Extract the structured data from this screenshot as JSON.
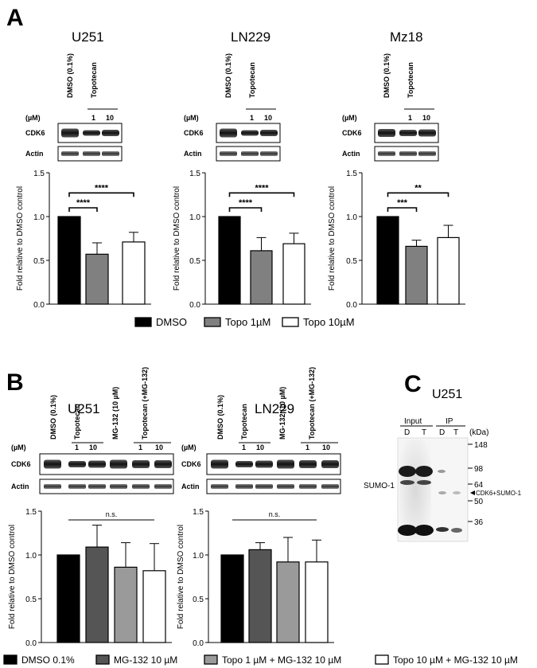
{
  "panels": {
    "a": "A",
    "b": "B",
    "c": "C"
  },
  "blots": {
    "conc_label": "(µM)",
    "dmso": "DMSO (0.1%)",
    "topotecan": "Topotecan",
    "mg132": "MG-132 (10 µM)",
    "topo_mg": "Topotecan (+MG-132)",
    "c1": "1",
    "c10": "10",
    "cdk6": "CDK6",
    "actin": "Actin"
  },
  "panel_c": {
    "title": "U251",
    "input": "Input",
    "ip": "IP",
    "d": "D",
    "t": "T",
    "kda": "(kDa)",
    "markers": [
      "148",
      "98",
      "64",
      "50",
      "36"
    ],
    "sumo": "SUMO-1",
    "arrow_label": "CDK6+SUMO-1"
  },
  "legend_a": {
    "items": [
      {
        "label": "DMSO",
        "color": "#000000"
      },
      {
        "label": "Topo 1µM",
        "color": "#808080"
      },
      {
        "label": "Topo 10µM",
        "color": "#ffffff"
      }
    ]
  },
  "legend_b": {
    "items": [
      {
        "label": "DMSO 0.1%",
        "color": "#000000"
      },
      {
        "label": "MG-132 10 µM",
        "color": "#555555"
      },
      {
        "label": "Topo 1 µM + MG-132 10 µM",
        "color": "#9a9a9a"
      },
      {
        "label": "Topo 10 µM + MG-132 10 µM",
        "color": "#ffffff"
      }
    ]
  },
  "chart_data": [
    {
      "type": "bar",
      "title": "U251",
      "ylabel": "Fold relative to DMSO control",
      "ylim": [
        0,
        1.5
      ],
      "yticks": [
        "0.0",
        "0.5",
        "1.0",
        "1.5"
      ],
      "categories": [
        "DMSO",
        "Topo 1µM",
        "Topo 10µM"
      ],
      "values": [
        1.0,
        0.57,
        0.71
      ],
      "errors": [
        0,
        0.13,
        0.11
      ],
      "colors": [
        "#000000",
        "#808080",
        "#ffffff"
      ],
      "significance": [
        {
          "from": 0,
          "to": 1,
          "label": "****"
        },
        {
          "from": 0,
          "to": 2,
          "label": "****"
        }
      ]
    },
    {
      "type": "bar",
      "title": "LN229",
      "ylabel": "Fold relative to DMSO control",
      "ylim": [
        0,
        1.5
      ],
      "yticks": [
        "0.0",
        "0.5",
        "1.0",
        "1.5"
      ],
      "categories": [
        "DMSO",
        "Topo 1µM",
        "Topo 10µM"
      ],
      "values": [
        1.0,
        0.61,
        0.69
      ],
      "errors": [
        0,
        0.15,
        0.12
      ],
      "colors": [
        "#000000",
        "#808080",
        "#ffffff"
      ],
      "significance": [
        {
          "from": 0,
          "to": 1,
          "label": "****"
        },
        {
          "from": 0,
          "to": 2,
          "label": "****"
        }
      ]
    },
    {
      "type": "bar",
      "title": "Mz18",
      "ylabel": "Fold relative to DMSO control",
      "ylim": [
        0,
        1.5
      ],
      "yticks": [
        "0.0",
        "0.5",
        "1.0",
        "1.5"
      ],
      "categories": [
        "DMSO",
        "Topo 1µM",
        "Topo 10µM"
      ],
      "values": [
        1.0,
        0.66,
        0.76
      ],
      "errors": [
        0,
        0.07,
        0.14
      ],
      "colors": [
        "#000000",
        "#808080",
        "#ffffff"
      ],
      "significance": [
        {
          "from": 0,
          "to": 1,
          "label": "***"
        },
        {
          "from": 0,
          "to": 2,
          "label": "**"
        }
      ]
    },
    {
      "type": "bar",
      "title": "U251",
      "ylabel": "Fold relative to DMSO control",
      "ylim": [
        0,
        1.5
      ],
      "yticks": [
        "0.0",
        "0.5",
        "1.0",
        "1.5"
      ],
      "categories": [
        "DMSO 0.1%",
        "MG-132 10 µM",
        "Topo 1 µM + MG-132 10 µM",
        "Topo 10 µM + MG-132 10 µM"
      ],
      "values": [
        1.0,
        1.09,
        0.86,
        0.82
      ],
      "errors": [
        0,
        0.25,
        0.28,
        0.31
      ],
      "colors": [
        "#000000",
        "#555555",
        "#9a9a9a",
        "#ffffff"
      ],
      "ns_label": "n.s."
    },
    {
      "type": "bar",
      "title": "LN229",
      "ylabel": "Fold relative to DMSO control",
      "ylim": [
        0,
        1.5
      ],
      "yticks": [
        "0.0",
        "0.5",
        "1.0",
        "1.5"
      ],
      "categories": [
        "DMSO 0.1%",
        "MG-132 10 µM",
        "Topo 1 µM + MG-132 10 µM",
        "Topo 10 µM + MG-132 10 µM"
      ],
      "values": [
        1.0,
        1.06,
        0.92,
        0.92
      ],
      "errors": [
        0,
        0.08,
        0.28,
        0.25
      ],
      "colors": [
        "#000000",
        "#555555",
        "#9a9a9a",
        "#ffffff"
      ],
      "ns_label": "n.s."
    }
  ]
}
